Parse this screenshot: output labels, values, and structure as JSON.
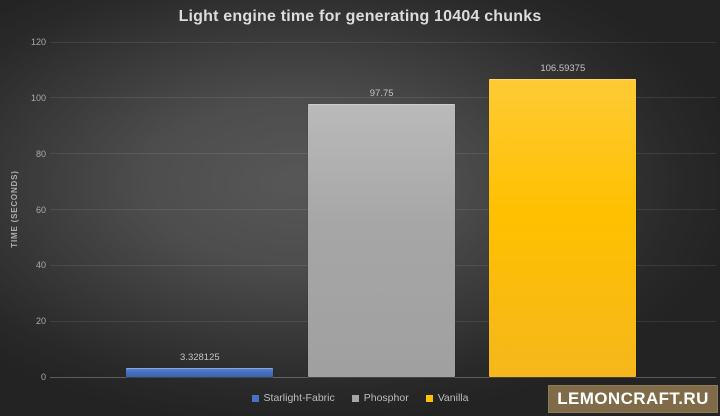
{
  "chart_data": {
    "type": "bar",
    "title": "Light engine time for generating 10404 chunks",
    "xlabel": "",
    "ylabel": "TIME (SECONDS)",
    "ylim": [
      0,
      120
    ],
    "yticks": [
      0,
      20,
      40,
      60,
      80,
      100,
      120
    ],
    "grid": true,
    "legend_position": "bottom",
    "categories": [
      "Starlight-Fabric",
      "Phosphor",
      "Vanilla"
    ],
    "values": [
      3.328125,
      97.75,
      106.59375
    ],
    "data_labels": [
      "3.328125",
      "97.75",
      "106.59375"
    ],
    "series": [
      {
        "name": "Starlight-Fabric",
        "value": 3.328125,
        "label": "3.328125",
        "color": "#4472c4",
        "color_top": "#5e86cd",
        "color_bottom": "#3a62ae"
      },
      {
        "name": "Phosphor",
        "value": 97.75,
        "label": "97.75",
        "color": "#a6a6a6",
        "color_top": "#bababa",
        "color_bottom": "#a0a0a0"
      },
      {
        "name": "Vanilla",
        "value": 106.59375,
        "label": "106.59375",
        "color": "#ffc000",
        "color_top": "#fecb35",
        "color_bottom": "#f5b71c"
      }
    ]
  },
  "watermark": {
    "text": "LEMONCRAFT.RU",
    "background_color": "#7f6b48",
    "text_color": "#ffffff"
  },
  "colors": {
    "background_center": "#575757",
    "background_edge": "#232323",
    "title_text": "#dcdcdc",
    "axis_text": "#a9a9a9",
    "gridline": "rgba(255,255,255,0.09)"
  }
}
